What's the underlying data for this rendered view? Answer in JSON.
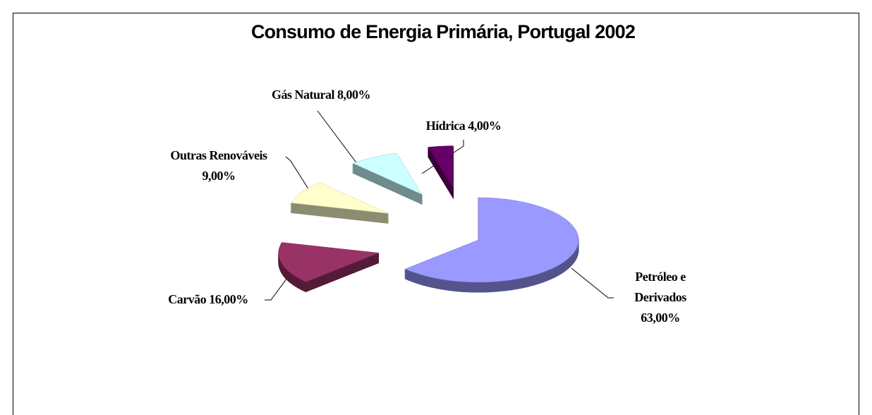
{
  "chart_data": {
    "type": "pie",
    "title": "Consumo de Energia Primária, Portugal 2002",
    "categories": [
      "Petróleo e Derivados",
      "Carvão",
      "Outras Renováveis",
      "Gás Natural",
      "Hídrica"
    ],
    "values": [
      63,
      16,
      9,
      8,
      4
    ],
    "value_labels": [
      "63,00%",
      "16,00%",
      "9,00%",
      "8,00%",
      "4,00%"
    ],
    "colors": [
      "#9999ff",
      "#993366",
      "#ffffcc",
      "#ccffff",
      "#660066"
    ]
  }
}
